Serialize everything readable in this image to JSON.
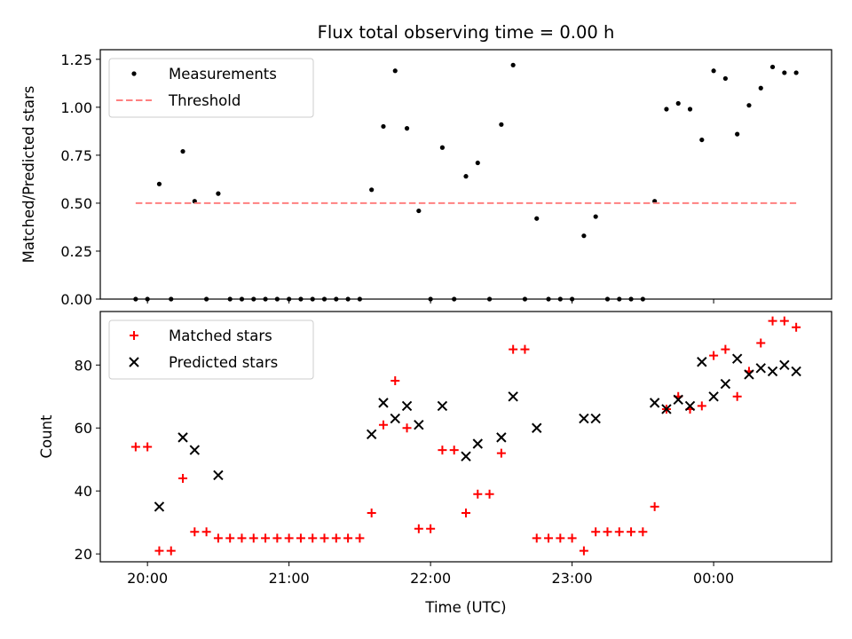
{
  "chart_data": {
    "type": "scatter",
    "title": "Flux total observing time = 0.00 h",
    "xlabel": "Time (UTC)",
    "x_ticks": [
      "20:00",
      "21:00",
      "22:00",
      "23:00",
      "00:00"
    ],
    "x_unit": "minutes after 20:00",
    "x_range": [
      -20,
      290
    ],
    "panels": [
      {
        "ylabel": "Matched/Predicted stars",
        "ylim": [
          0,
          1.3
        ],
        "yticks": [
          "0.00",
          "0.25",
          "0.50",
          "0.75",
          "1.00",
          "1.25"
        ],
        "legend_placement": "top-left",
        "series": [
          {
            "name": "Measurements",
            "marker": "dot",
            "color": "#000000",
            "points": [
              [
                -5,
                0
              ],
              [
                0,
                0
              ],
              [
                5,
                0.6
              ],
              [
                10,
                0
              ],
              [
                15,
                0.77
              ],
              [
                20,
                0.51
              ],
              [
                25,
                0
              ],
              [
                30,
                0.55
              ],
              [
                35,
                0
              ],
              [
                40,
                0
              ],
              [
                45,
                0
              ],
              [
                50,
                0
              ],
              [
                55,
                0
              ],
              [
                60,
                0
              ],
              [
                65,
                0
              ],
              [
                70,
                0
              ],
              [
                75,
                0
              ],
              [
                80,
                0
              ],
              [
                85,
                0
              ],
              [
                90,
                0
              ],
              [
                95,
                0.57
              ],
              [
                100,
                0.9
              ],
              [
                105,
                1.19
              ],
              [
                110,
                0.89
              ],
              [
                115,
                0.46
              ],
              [
                120,
                0
              ],
              [
                125,
                0.79
              ],
              [
                130,
                0
              ],
              [
                135,
                0.64
              ],
              [
                140,
                0.71
              ],
              [
                145,
                0
              ],
              [
                150,
                0.91
              ],
              [
                155,
                1.22
              ],
              [
                160,
                0
              ],
              [
                165,
                0.42
              ],
              [
                170,
                0
              ],
              [
                175,
                0
              ],
              [
                180,
                0
              ],
              [
                185,
                0.33
              ],
              [
                190,
                0.43
              ],
              [
                195,
                0
              ],
              [
                200,
                0
              ],
              [
                205,
                0
              ],
              [
                210,
                0
              ],
              [
                215,
                0.51
              ],
              [
                220,
                0.99
              ],
              [
                225,
                1.02
              ],
              [
                230,
                0.99
              ],
              [
                235,
                0.83
              ],
              [
                240,
                1.19
              ],
              [
                245,
                1.15
              ],
              [
                250,
                0.86
              ],
              [
                255,
                1.01
              ],
              [
                260,
                1.1
              ],
              [
                265,
                1.21
              ],
              [
                270,
                1.18
              ],
              [
                275,
                1.18
              ]
            ]
          },
          {
            "name": "Threshold",
            "line": "dashed",
            "color": "#ff8080",
            "points": [
              [
                -5,
                0.5
              ],
              [
                275,
                0.5
              ]
            ]
          }
        ]
      },
      {
        "ylabel": "Count",
        "ylim": [
          17.5,
          97
        ],
        "yticks": [
          "20",
          "40",
          "60",
          "80"
        ],
        "legend_placement": "top-left",
        "series": [
          {
            "name": "Matched stars",
            "marker": "plus",
            "color": "#ff0000",
            "points": [
              [
                -5,
                54
              ],
              [
                0,
                54
              ],
              [
                5,
                21
              ],
              [
                10,
                21
              ],
              [
                15,
                44
              ],
              [
                20,
                27
              ],
              [
                25,
                27
              ],
              [
                30,
                25
              ],
              [
                35,
                25
              ],
              [
                40,
                25
              ],
              [
                45,
                25
              ],
              [
                50,
                25
              ],
              [
                55,
                25
              ],
              [
                60,
                25
              ],
              [
                65,
                25
              ],
              [
                70,
                25
              ],
              [
                75,
                25
              ],
              [
                80,
                25
              ],
              [
                85,
                25
              ],
              [
                90,
                25
              ],
              [
                95,
                33
              ],
              [
                100,
                61
              ],
              [
                105,
                75
              ],
              [
                110,
                60
              ],
              [
                115,
                28
              ],
              [
                120,
                28
              ],
              [
                125,
                53
              ],
              [
                130,
                53
              ],
              [
                135,
                33
              ],
              [
                140,
                39
              ],
              [
                145,
                39
              ],
              [
                150,
                52
              ],
              [
                155,
                85
              ],
              [
                160,
                85
              ],
              [
                165,
                25
              ],
              [
                170,
                25
              ],
              [
                175,
                25
              ],
              [
                180,
                25
              ],
              [
                185,
                21
              ],
              [
                190,
                27
              ],
              [
                195,
                27
              ],
              [
                200,
                27
              ],
              [
                205,
                27
              ],
              [
                210,
                27
              ],
              [
                215,
                35
              ],
              [
                220,
                66
              ],
              [
                225,
                70
              ],
              [
                230,
                66
              ],
              [
                235,
                67
              ],
              [
                240,
                83
              ],
              [
                245,
                85
              ],
              [
                250,
                70
              ],
              [
                255,
                78
              ],
              [
                260,
                87
              ],
              [
                265,
                94
              ],
              [
                270,
                94
              ],
              [
                275,
                92
              ]
            ]
          },
          {
            "name": "Predicted stars",
            "marker": "x",
            "color": "#000000",
            "points": [
              [
                5,
                35
              ],
              [
                15,
                57
              ],
              [
                20,
                53
              ],
              [
                30,
                45
              ],
              [
                95,
                58
              ],
              [
                100,
                68
              ],
              [
                105,
                63
              ],
              [
                110,
                67
              ],
              [
                115,
                61
              ],
              [
                125,
                67
              ],
              [
                135,
                51
              ],
              [
                140,
                55
              ],
              [
                150,
                57
              ],
              [
                155,
                70
              ],
              [
                165,
                60
              ],
              [
                185,
                63
              ],
              [
                190,
                63
              ],
              [
                215,
                68
              ],
              [
                220,
                66
              ],
              [
                225,
                69
              ],
              [
                230,
                67
              ],
              [
                235,
                81
              ],
              [
                240,
                70
              ],
              [
                245,
                74
              ],
              [
                250,
                82
              ],
              [
                255,
                77
              ],
              [
                260,
                79
              ],
              [
                265,
                78
              ],
              [
                270,
                80
              ],
              [
                275,
                78
              ]
            ]
          }
        ]
      }
    ]
  }
}
